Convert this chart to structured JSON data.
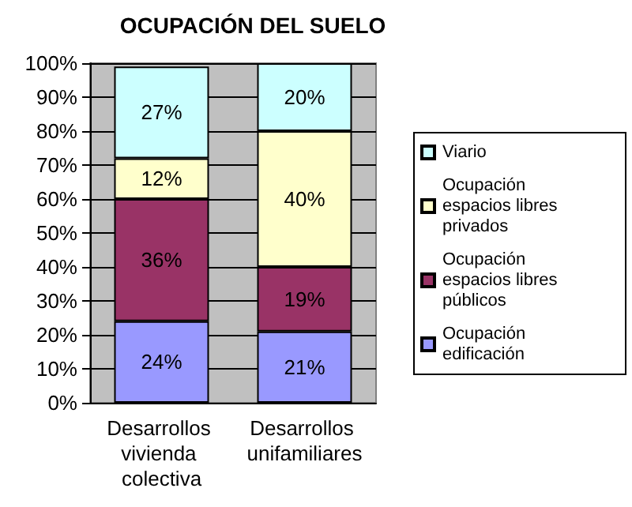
{
  "chart_data": {
    "type": "bar",
    "title": "OCUPACIÓN DEL SUELO",
    "stacked": true,
    "categories": [
      "Desarrollos vivienda colectiva",
      "Desarrollos unifamiliares"
    ],
    "series": [
      {
        "name": "Ocupación edificación",
        "color": "#9999ff",
        "values": [
          24,
          21
        ],
        "value_labels": [
          "24%",
          "21%"
        ]
      },
      {
        "name": "Ocupación espacios libres públicos",
        "color": "#993366",
        "values": [
          36,
          19
        ],
        "value_labels": [
          "36%",
          "19%"
        ]
      },
      {
        "name": "Ocupación espacios libres privados",
        "color": "#ffffcc",
        "values": [
          12,
          40
        ],
        "value_labels": [
          "12%",
          "40%"
        ]
      },
      {
        "name": "Viario",
        "color": "#ccffff",
        "values": [
          27,
          20
        ],
        "value_labels": [
          "27%",
          "20%"
        ]
      }
    ],
    "ylim": [
      0,
      100
    ],
    "yticks": [
      {
        "value": 0,
        "label": "0%"
      },
      {
        "value": 10,
        "label": "10%"
      },
      {
        "value": 20,
        "label": "20%"
      },
      {
        "value": 30,
        "label": "30%"
      },
      {
        "value": 40,
        "label": "40%"
      },
      {
        "value": 50,
        "label": "50%"
      },
      {
        "value": 60,
        "label": "60%"
      },
      {
        "value": 70,
        "label": "70%"
      },
      {
        "value": 80,
        "label": "80%"
      },
      {
        "value": 90,
        "label": "90%"
      },
      {
        "value": 100,
        "label": "100%"
      }
    ],
    "grid": "y",
    "legend": "right"
  }
}
